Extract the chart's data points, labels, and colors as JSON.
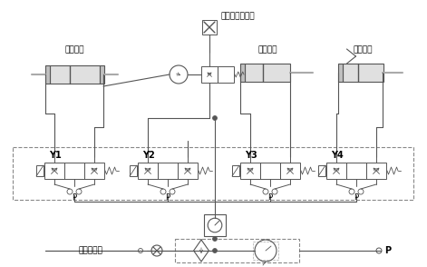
{
  "bg_color": "#ffffff",
  "lc": "#aaaaaa",
  "lc_dark": "#555555",
  "tc": "#000000",
  "figsize": [
    4.71,
    2.94
  ],
  "dpi": 100,
  "labels": {
    "nozzle": "到叶轮箱充气嘴",
    "san": "三位气缸",
    "ya": "压袋气缸",
    "tui": "推包气缸",
    "jie": "接压缩空气",
    "y1": "Y1",
    "y2": "Y2",
    "y3": "Y3",
    "y4": "Y4",
    "p": "P"
  }
}
